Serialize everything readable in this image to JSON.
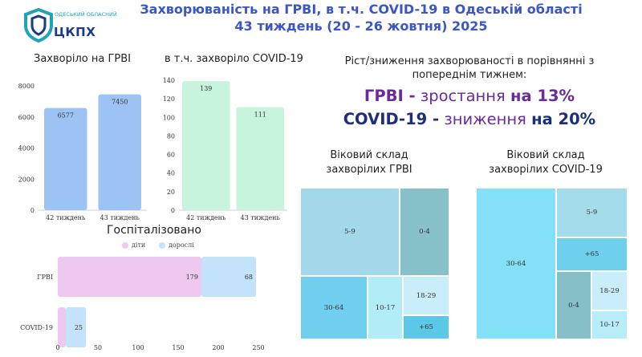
{
  "header": {
    "logo_org": "ОДЕСЬКИЙ ОБЛАСНИЙ",
    "logo_name": "ЦКПХ",
    "title_line1": "Захворюваність на ГРВІ, в т.ч. COVID-19 в Одеській області",
    "title_line2": "43 тиждень (20 - 26 жовтня) 2025"
  },
  "colors": {
    "title": "#3a56c8",
    "grvi_bar": "#9dc3f5",
    "covid_bar": "#c8f3dd",
    "children": "#efc8f2",
    "adults": "#c2e3f9",
    "purple": "#6a2b9d",
    "navy": "#1b2f7a"
  },
  "trend": {
    "subtitle_line1": "Ріст/зниження захворюваності в порівнянні з",
    "subtitle_line2": "попереднім тижнем:",
    "grvi": {
      "label": "ГРВІ -",
      "direction": "зростання",
      "amount": "на 13%"
    },
    "covid": {
      "label": "COVID-19 -",
      "direction": "зниження",
      "amount": "на 20%"
    }
  },
  "chart_data": [
    {
      "type": "bar",
      "title": "Захворіло на ГРВІ",
      "categories": [
        "42 тиждень",
        "43 тиждень"
      ],
      "values": [
        6577,
        7450
      ],
      "ylim": [
        0,
        8000
      ],
      "yticks": [
        "0",
        "2000",
        "4000",
        "6000",
        "8000"
      ],
      "grid": false
    },
    {
      "type": "bar",
      "title": "в т.ч. захворіло COVID-19",
      "categories": [
        "42 тиждень",
        "43 тиждень"
      ],
      "values": [
        139,
        111
      ],
      "ylim": [
        0,
        140
      ],
      "yticks": [
        "0",
        "20",
        "40",
        "60",
        "80",
        "100",
        "120",
        "140"
      ],
      "grid": false
    },
    {
      "type": "bar",
      "orientation": "horizontal",
      "stacked": true,
      "title": "Госпіталізовано",
      "categories": [
        "ГРВІ",
        "COVID-19"
      ],
      "series": [
        {
          "name": "діти",
          "values": [
            179,
            10
          ]
        },
        {
          "name": "дорослі",
          "values": [
            68,
            25
          ]
        }
      ],
      "xlim": [
        0,
        250
      ],
      "xticks": [
        "0",
        "50",
        "100",
        "150",
        "200",
        "250"
      ],
      "legend": "top"
    },
    {
      "type": "treemap",
      "title_line1": "Віковий склад",
      "title_line2": "захворілих ГРВІ",
      "groups": [
        "5-9",
        "0-4",
        "30-64",
        "10-17",
        "18-29",
        "65+"
      ],
      "labels": [
        "5-9",
        "0-4",
        "30-64",
        "10-17",
        "18-29",
        "+65"
      ]
    },
    {
      "type": "treemap",
      "title_line1": "Віковий склад",
      "title_line2": "захворілих COVID-19",
      "groups": [
        "30-64",
        "5-9",
        "65+",
        "0-4",
        "18-29",
        "10-17"
      ],
      "labels": [
        "30-64",
        "5-9",
        "+65",
        "0-4",
        "18-29",
        "10-17"
      ]
    }
  ]
}
